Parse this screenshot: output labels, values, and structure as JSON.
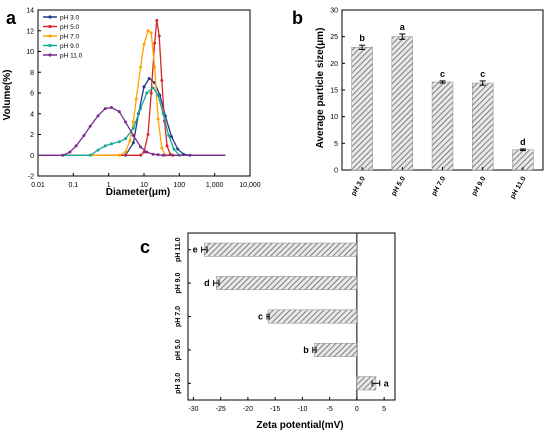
{
  "colors": {
    "axis": "#000000",
    "hatch": "#666666",
    "bar_bg": "#e8e8e8"
  },
  "chart_data": [
    {
      "panel": "a",
      "type": "line",
      "xlabel": "Diameter(μm)",
      "ylabel": "Volume(%)",
      "xscale": "log",
      "xlim": [
        0.01,
        10000
      ],
      "ylim": [
        -2,
        14
      ],
      "xticks": [
        "0.01",
        "0.1",
        "1",
        "10",
        "100",
        "1,000",
        "10,000"
      ],
      "yticks": [
        "-2",
        "0",
        "2",
        "4",
        "6",
        "8",
        "10",
        "12",
        "14"
      ],
      "legend_position": "top-left",
      "series": [
        {
          "name": "pH 3.0",
          "color": "#1f3a8a",
          "x": [
            3,
            5,
            7,
            10,
            14,
            20,
            28,
            40,
            60,
            90,
            130,
            200
          ],
          "y": [
            0,
            1.2,
            4.0,
            6.6,
            7.4,
            7.0,
            5.8,
            3.8,
            1.8,
            0.6,
            0.1,
            0
          ]
        },
        {
          "name": "pH 5.0",
          "color": "#d62728",
          "x": [
            8,
            10,
            13,
            16,
            20,
            23,
            27,
            32,
            38,
            45,
            55,
            65
          ],
          "y": [
            0,
            0.3,
            2.0,
            6.0,
            10.8,
            13.0,
            11.5,
            7.2,
            3.3,
            0.9,
            0.1,
            0
          ]
        },
        {
          "name": "pH 7.0",
          "color": "#ffa500",
          "x": [
            2,
            3,
            4,
            5,
            6,
            8,
            10,
            13,
            16,
            20,
            25,
            32,
            40
          ],
          "y": [
            0,
            0.3,
            1.4,
            3.2,
            5.4,
            8.5,
            10.7,
            12.0,
            11.8,
            8.5,
            3.5,
            0.7,
            0
          ]
        },
        {
          "name": "pH 9.0",
          "color": "#17a89a",
          "x": [
            0.3,
            0.5,
            0.8,
            1.2,
            2,
            3,
            5,
            8,
            12,
            18,
            25,
            35,
            50,
            70,
            100
          ],
          "y": [
            0,
            0.5,
            0.9,
            1.1,
            1.3,
            1.6,
            2.6,
            4.5,
            6.0,
            6.5,
            5.8,
            4.0,
            1.9,
            0.6,
            0
          ]
        },
        {
          "name": "pH 11.0",
          "color": "#7b2d8e",
          "x": [
            0.05,
            0.08,
            0.12,
            0.2,
            0.3,
            0.5,
            0.8,
            1.2,
            2,
            3,
            5,
            8,
            12,
            18,
            25,
            35
          ],
          "y": [
            0,
            0.3,
            0.9,
            1.9,
            2.8,
            3.8,
            4.5,
            4.6,
            4.2,
            3.2,
            1.9,
            0.8,
            0.3,
            0.1,
            0.05,
            0
          ]
        }
      ]
    },
    {
      "panel": "b",
      "type": "bar",
      "ylabel": "Average particle size(μm)",
      "ylim": [
        0,
        30
      ],
      "yticks": [
        "0",
        "5",
        "10",
        "15",
        "20",
        "25",
        "30"
      ],
      "categories": [
        "pH 3.0",
        "pH 5.0",
        "pH 7.0",
        "pH 9.0",
        "pH 11.0"
      ],
      "values": [
        23.0,
        25.0,
        16.5,
        16.3,
        3.8
      ],
      "errors": [
        0.4,
        0.5,
        0.2,
        0.4,
        0.15
      ],
      "letters": [
        "b",
        "a",
        "c",
        "c",
        "d"
      ]
    },
    {
      "panel": "c",
      "type": "bar",
      "orientation": "horizontal",
      "xlabel": "Zeta potential(mV)",
      "xlim": [
        -31,
        7
      ],
      "xticks": [
        "-30",
        "-25",
        "-20",
        "-15",
        "-10",
        "-5",
        "0",
        "5"
      ],
      "categories": [
        "pH 11.0",
        "pH 9.0",
        "pH 7.0",
        "pH 5.0",
        "pH 3.0"
      ],
      "values": [
        -28.0,
        -25.8,
        -16.3,
        -7.8,
        3.5
      ],
      "errors": [
        0.5,
        0.5,
        0.2,
        0.3,
        0.7
      ],
      "letters": [
        "e",
        "d",
        "c",
        "b",
        "a"
      ]
    }
  ]
}
